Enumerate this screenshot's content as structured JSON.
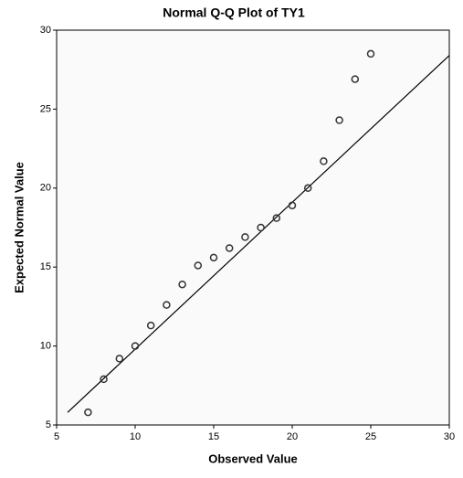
{
  "chart_data": {
    "type": "scatter",
    "title": "Normal Q-Q Plot of TY1",
    "x_label": "Observed Value",
    "y_label": "Expected Normal Value",
    "series": [
      {
        "name": "TY1",
        "color": "#333333",
        "x": [
          7,
          8,
          9,
          10,
          11,
          12,
          13,
          14,
          15,
          16,
          17,
          18,
          19,
          20,
          21,
          22,
          23,
          24,
          25
        ],
        "values": [
          5.8,
          7.9,
          9.2,
          10.0,
          11.3,
          12.6,
          13.9,
          15.1,
          15.6,
          16.2,
          16.9,
          17.5,
          18.1,
          18.9,
          20.0,
          21.7,
          24.3,
          26.9,
          28.5
        ]
      }
    ],
    "reference_line": {
      "x": [
        5.7,
        30
      ],
      "values": [
        5.8,
        28.4
      ],
      "color": "#000000"
    },
    "xlim": [
      5,
      30
    ],
    "xticks": [
      5,
      10,
      15,
      20,
      25,
      30
    ],
    "ylim": [
      5,
      30
    ],
    "yticks": [
      5,
      10,
      15,
      20,
      25,
      30
    ]
  }
}
